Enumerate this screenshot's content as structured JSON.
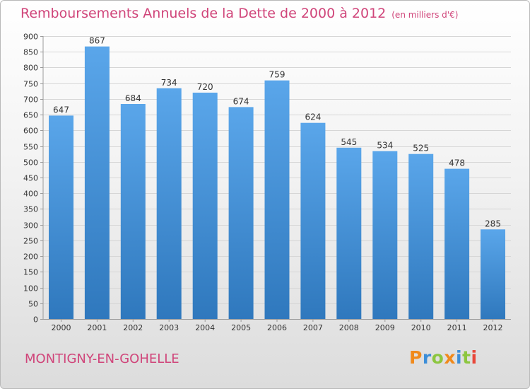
{
  "header": {
    "title": "Remboursements Annuels de la Dette de 2000 à 2012",
    "unit": "(en milliers d'€)"
  },
  "footer": {
    "town": "MONTIGNY-EN-GOHELLE",
    "logo": "Proxiti"
  },
  "colors": {
    "accent": "#d0457a",
    "bar_top": "#5aa6ea",
    "bar_bottom": "#2f78bd",
    "logo_letters": [
      "#f08a1c",
      "#3c8ed8",
      "#8cc63f",
      "#f08a1c",
      "#3c8ed8",
      "#8cc63f",
      "#e8473a"
    ]
  },
  "chart_data": {
    "type": "bar",
    "title": "Remboursements Annuels de la Dette de 2000 à 2012",
    "subtitle": "(en milliers d'€)",
    "categories": [
      "2000",
      "2001",
      "2002",
      "2003",
      "2004",
      "2005",
      "2006",
      "2007",
      "2008",
      "2009",
      "2010",
      "2011",
      "2012"
    ],
    "values": [
      647,
      867,
      684,
      734,
      720,
      674,
      759,
      624,
      545,
      534,
      525,
      478,
      285
    ],
    "ylim": [
      0,
      900
    ],
    "yticks": [
      0,
      50,
      100,
      150,
      200,
      250,
      300,
      350,
      400,
      450,
      500,
      550,
      600,
      650,
      700,
      750,
      800,
      850,
      900
    ],
    "xlabel": "",
    "ylabel": "",
    "grid": true
  }
}
